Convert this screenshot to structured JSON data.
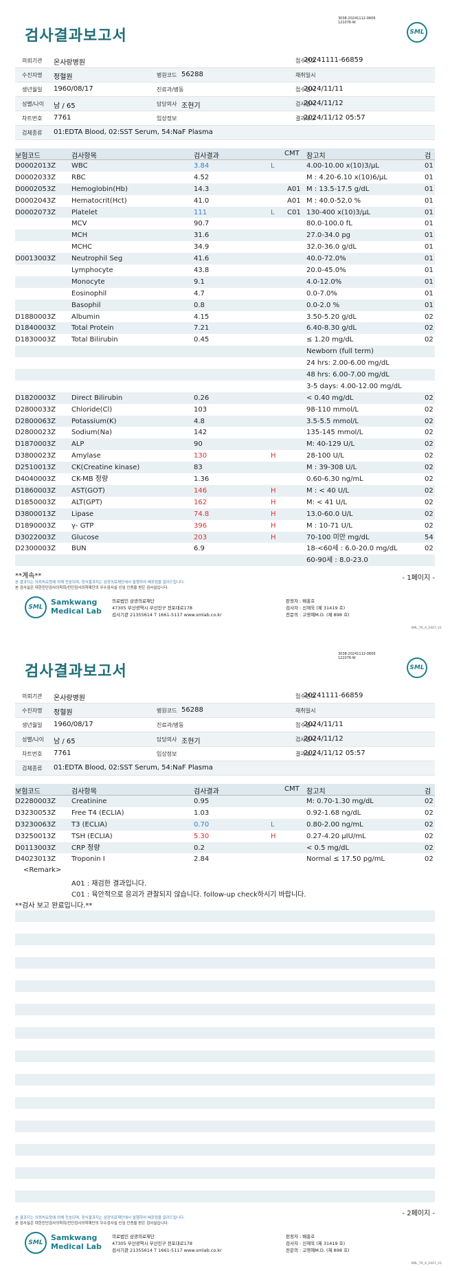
{
  "report_title": "검사결과보고서",
  "barcode_text": [
    "3038-20241112-0606",
    "121076-W"
  ],
  "logo_text": "SML",
  "info": {
    "requester_label": "의뢰기관",
    "requester": "온사랑병원",
    "receipt_no_label": "접수번호",
    "receipt_no": "20241111-66859",
    "patient_label": "수진자명",
    "patient": "정혈원",
    "hospital_code_label": "병원코드",
    "hospital_code": "56288",
    "collect_date_label": "채취일시",
    "collect_date": "",
    "birth_label": "생년월일",
    "birth": "1960/08/17",
    "dept_label": "진료과/병동",
    "dept": "",
    "receipt_date_label": "접수일시",
    "receipt_date": "2024/11/11",
    "sex_age_label": "성별/나이",
    "sex_age": "남 / 65",
    "doctor_label": "담당의사",
    "doctor": "조현기",
    "test_date_label": "검사일시",
    "test_date": "2024/11/12",
    "chart_label": "차트번호",
    "chart": "7761",
    "clinical_label": "임상정보",
    "clinical": "",
    "report_date_label": "결과보고",
    "report_date": "2024/11/12 05:57",
    "specimen_label": "검체종류",
    "specimen": "01:EDTA Blood, 02:SST Serum, 54:NaF Plasma"
  },
  "table_headers": {
    "code": "보험코드",
    "item": "검사항목",
    "result": "검사결과",
    "cmt": "CMT",
    "ref": "참고치",
    "spec": "검체"
  },
  "page1_rows": [
    {
      "code": "D0002013Z",
      "item": "WBC",
      "result": "3.84",
      "color": "blue",
      "flag": "L",
      "cmt": "",
      "ref": "4.00-10.00 x(10)3/μL",
      "spec": "01"
    },
    {
      "code": "D0002033Z",
      "item": "RBC",
      "result": "4.52",
      "color": "",
      "flag": "",
      "cmt": "",
      "ref": "M : 4.20-6.10 x(10)6/μL",
      "spec": "01"
    },
    {
      "code": "D0002053Z",
      "item": "Hemoglobin(Hb)",
      "result": "14.3",
      "color": "",
      "flag": "",
      "cmt": "A01",
      "ref": "M : 13.5-17.5 g/dL",
      "spec": "01"
    },
    {
      "code": "D0002043Z",
      "item": "Hematocrit(Hct)",
      "result": "41.0",
      "color": "",
      "flag": "",
      "cmt": "A01",
      "ref": "M : 40.0-52.0 %",
      "spec": "01"
    },
    {
      "code": "D0002073Z",
      "item": "Platelet",
      "result": "111",
      "color": "blue",
      "flag": "L",
      "cmt": "C01",
      "ref": "130-400 x(10)3/μL",
      "spec": "01"
    },
    {
      "code": "",
      "item": "MCV",
      "result": "90.7",
      "color": "",
      "flag": "",
      "cmt": "",
      "ref": "80.0-100.0 fL",
      "spec": "01"
    },
    {
      "code": "",
      "item": "MCH",
      "result": "31.6",
      "color": "",
      "flag": "",
      "cmt": "",
      "ref": "27.0-34.0 pg",
      "spec": "01"
    },
    {
      "code": "",
      "item": "MCHC",
      "result": "34.9",
      "color": "",
      "flag": "",
      "cmt": "",
      "ref": "32.0-36.0 g/dL",
      "spec": "01"
    },
    {
      "code": "D0013003Z",
      "item": "Neutrophil Seg",
      "result": "41.6",
      "color": "",
      "flag": "",
      "cmt": "",
      "ref": "40.0-72.0%",
      "spec": "01"
    },
    {
      "code": "",
      "item": "Lymphocyte",
      "result": "43.8",
      "color": "",
      "flag": "",
      "cmt": "",
      "ref": "20.0-45.0%",
      "spec": "01"
    },
    {
      "code": "",
      "item": "Monocyte",
      "result": "9.1",
      "color": "",
      "flag": "",
      "cmt": "",
      "ref": "4.0-12.0%",
      "spec": "01"
    },
    {
      "code": "",
      "item": "Eosinophil",
      "result": "4.7",
      "color": "",
      "flag": "",
      "cmt": "",
      "ref": "0.0-7.0%",
      "spec": "01"
    },
    {
      "code": "",
      "item": "Basophil",
      "result": "0.8",
      "color": "",
      "flag": "",
      "cmt": "",
      "ref": "0.0-2.0 %",
      "spec": "01"
    },
    {
      "code": "D1880003Z",
      "item": "Albumin",
      "result": "4.15",
      "color": "",
      "flag": "",
      "cmt": "",
      "ref": "3.50-5.20 g/dL",
      "spec": "02"
    },
    {
      "code": "D1840003Z",
      "item": "Total Protein",
      "result": "7.21",
      "color": "",
      "flag": "",
      "cmt": "",
      "ref": "6.40-8.30 g/dL",
      "spec": "02"
    },
    {
      "code": "D1830003Z",
      "item": "Total Bilirubin",
      "result": "0.45",
      "color": "",
      "flag": "",
      "cmt": "",
      "ref": "≤ 1.20 mg/dL",
      "spec": "02"
    },
    {
      "code": "",
      "item": "",
      "result": "",
      "color": "",
      "flag": "",
      "cmt": "",
      "ref": "Newborn (full term)",
      "spec": ""
    },
    {
      "code": "",
      "item": "",
      "result": "",
      "color": "",
      "flag": "",
      "cmt": "",
      "ref": "24 hrs: 2.00-6.00 mg/dL",
      "spec": ""
    },
    {
      "code": "",
      "item": "",
      "result": "",
      "color": "",
      "flag": "",
      "cmt": "",
      "ref": "48 hrs: 6.00-7.00 mg/dL",
      "spec": ""
    },
    {
      "code": "",
      "item": "",
      "result": "",
      "color": "",
      "flag": "",
      "cmt": "",
      "ref": "3-5 days: 4.00-12.00 mg/dL",
      "spec": ""
    },
    {
      "code": "D1820003Z",
      "item": "Direct Bilirubin",
      "result": "0.26",
      "color": "",
      "flag": "",
      "cmt": "",
      "ref": "< 0.40 mg/dL",
      "spec": "02"
    },
    {
      "code": "D2800033Z",
      "item": "Chloride(Cl)",
      "result": "103",
      "color": "",
      "flag": "",
      "cmt": "",
      "ref": "98-110 mmol/L",
      "spec": "02"
    },
    {
      "code": "D2800063Z",
      "item": "Potassium(K)",
      "result": "4.8",
      "color": "",
      "flag": "",
      "cmt": "",
      "ref": "3.5-5.5 mmol/L",
      "spec": "02"
    },
    {
      "code": "D2800023Z",
      "item": "Sodium(Na)",
      "result": "142",
      "color": "",
      "flag": "",
      "cmt": "",
      "ref": "135-145 mmol/L",
      "spec": "02"
    },
    {
      "code": "D1870003Z",
      "item": "ALP",
      "result": "90",
      "color": "",
      "flag": "",
      "cmt": "",
      "ref": "M: 40-129 U/L",
      "spec": "02"
    },
    {
      "code": "D3800023Z",
      "item": "Amylase",
      "result": "130",
      "color": "red",
      "flag": "H",
      "cmt": "",
      "ref": "28-100 U/L",
      "spec": "02"
    },
    {
      "code": "D2510013Z",
      "item": "CK(Creatine kinase)",
      "result": "83",
      "color": "",
      "flag": "",
      "cmt": "",
      "ref": "M : 39-308 U/L",
      "spec": "02"
    },
    {
      "code": "D4040003Z",
      "item": "CK-MB 정량",
      "result": "1.36",
      "color": "",
      "flag": "",
      "cmt": "",
      "ref": "0.60-6.30 ng/mL",
      "spec": "02"
    },
    {
      "code": "D1860003Z",
      "item": "AST(GOT)",
      "result": "146",
      "color": "red",
      "flag": "H",
      "cmt": "",
      "ref": "M : < 40 U/L",
      "spec": "02"
    },
    {
      "code": "D1850003Z",
      "item": "ALT(GPT)",
      "result": "162",
      "color": "red",
      "flag": "H",
      "cmt": "",
      "ref": "M: < 41 U/L",
      "spec": "02"
    },
    {
      "code": "D3800013Z",
      "item": "Lipase",
      "result": "74.8",
      "color": "red",
      "flag": "H",
      "cmt": "",
      "ref": "13.0-60.0 U/L",
      "spec": "02"
    },
    {
      "code": "D1890003Z",
      "item": "γ- GTP",
      "result": "396",
      "color": "red",
      "flag": "H",
      "cmt": "",
      "ref": "M : 10-71 U/L",
      "spec": "02"
    },
    {
      "code": "D3022003Z",
      "item": "Glucose",
      "result": "203",
      "color": "red",
      "flag": "H",
      "cmt": "",
      "ref": "70-100 미만 mg/dL",
      "spec": "54"
    },
    {
      "code": "D2300003Z",
      "item": "BUN",
      "result": "6.9",
      "color": "",
      "flag": "",
      "cmt": "",
      "ref": "18-<60세 : 6.0-20.0 mg/dL",
      "spec": "02"
    },
    {
      "code": "",
      "item": "",
      "result": "",
      "color": "",
      "flag": "",
      "cmt": "",
      "ref": "60-90세 : 8.0-23.0",
      "spec": ""
    }
  ],
  "page1_continue": "**계속**",
  "page1_num": "- 1페이지 -",
  "page2_rows": [
    {
      "code": "D2280003Z",
      "item": "Creatinine",
      "result": "0.95",
      "color": "",
      "flag": "",
      "cmt": "",
      "ref": "M: 0.70-1.30 mg/dL",
      "spec": "02"
    },
    {
      "code": "D3230053Z",
      "item": "Free T4 (ECLIA)",
      "result": "1.03",
      "color": "",
      "flag": "",
      "cmt": "",
      "ref": "0.92-1.68 ng/dL",
      "spec": "02"
    },
    {
      "code": "D3230063Z",
      "item": "T3 (ECLIA)",
      "result": "0.70",
      "color": "blue",
      "flag": "L",
      "cmt": "",
      "ref": "0.80-2.00 ng/mL",
      "spec": "02"
    },
    {
      "code": "D3250013Z",
      "item": "TSH (ECLIA)",
      "result": "5.30",
      "color": "red",
      "flag": "H",
      "cmt": "",
      "ref": "0.27-4.20 μIU/mL",
      "spec": "02"
    },
    {
      "code": "D0113003Z",
      "item": "CRP 정량",
      "result": "0.2",
      "color": "",
      "flag": "",
      "cmt": "",
      "ref": "< 0.5 mg/dL",
      "spec": "02"
    },
    {
      "code": "D4023013Z",
      "item": "Troponin I",
      "result": "2.84",
      "color": "",
      "flag": "",
      "cmt": "",
      "ref": "Normal ≤ 17.50 pg/mL",
      "spec": "02"
    }
  ],
  "remark": {
    "title": "<Remark>",
    "a01": "A01 : 재검한 결과입니다.",
    "c01": "C01 : 육안적으로 응괴가 관찰되지 않습니다. follow-up check하시기 바랍니다.",
    "done": "**검사 보고 완료입니다.**"
  },
  "page2_num": "- 2페이지 -",
  "footer": {
    "note1": "본 결과지는 의뢰처요청에 의해 전송되며, 정식결과지는 삼광의료재단에서 발행하여 배포됨을 알려드립니다.",
    "note2": "본 검사실은 대한진단검사의학회/진단검사의학재단의 우수검사실 신임 인증을 받은 검사실입니다.",
    "company_en": "Samkwang Medical Lab",
    "org": "의료법인 삼광의료재단",
    "address": "47305 부산광역시 부산진구 전포대로178",
    "contact": "검사기관 21355614 T 1661-5117 www.smlab.co.kr",
    "reviewer": "판정자 : 배홍호",
    "examiner": "검사자 : 신재욱 (제 31419 호)",
    "specialist": "전문의 : 고영혜M.D. (제 898 호)",
    "doc_id": "SML_TR_A_2407_V1"
  }
}
